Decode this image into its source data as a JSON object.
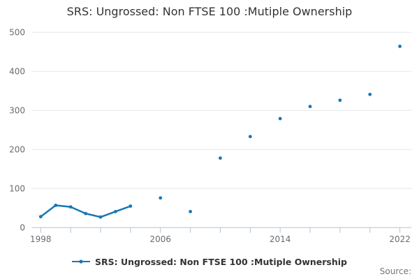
{
  "title": "SRS: Ungrossed: Non FTSE 100 :Mutiple Ownership",
  "legend": {
    "label": "SRS: Ungrossed: Non FTSE 100 :Mutiple Ownership"
  },
  "source_label": "Source:",
  "colors": {
    "series": "#1777b5",
    "grid": "#e7e7e7",
    "axis": "#b3c3d6",
    "tick_label": "#6b6b6b",
    "title_text": "#333333",
    "legend_text": "#333333",
    "source_text": "#757575",
    "background": "#ffffff"
  },
  "chart_data": {
    "type": "line",
    "title": "SRS: Ungrossed: Non FTSE 100 :Mutiple Ownership",
    "xlabel": "",
    "ylabel": "",
    "legend_position": "bottom",
    "grid": "horizontal-only",
    "marker": "dot",
    "connect_rule": "only consecutive years are joined; gapped years render as isolated points",
    "x_axis": {
      "tick_start": 1998,
      "tick_end": 2022,
      "tick_step": 2,
      "labeled_ticks": [
        1998,
        2006,
        2014,
        2022
      ]
    },
    "y_axis": {
      "min": 0,
      "max": 500,
      "tick_step": 100,
      "ticks": [
        0,
        100,
        200,
        300,
        400,
        500
      ]
    },
    "series": [
      {
        "name": "SRS: Ungrossed: Non FTSE 100 :Mutiple Ownership",
        "points": [
          [
            1998,
            28
          ],
          [
            1999,
            57
          ],
          [
            2000,
            53
          ],
          [
            2001,
            36
          ],
          [
            2002,
            27
          ],
          [
            2003,
            41
          ],
          [
            2004,
            55
          ],
          [
            2006,
            76
          ],
          [
            2008,
            41
          ],
          [
            2010,
            178
          ],
          [
            2012,
            233
          ],
          [
            2014,
            279
          ],
          [
            2016,
            310
          ],
          [
            2018,
            326
          ],
          [
            2020,
            341
          ],
          [
            2022,
            464
          ]
        ]
      }
    ]
  }
}
